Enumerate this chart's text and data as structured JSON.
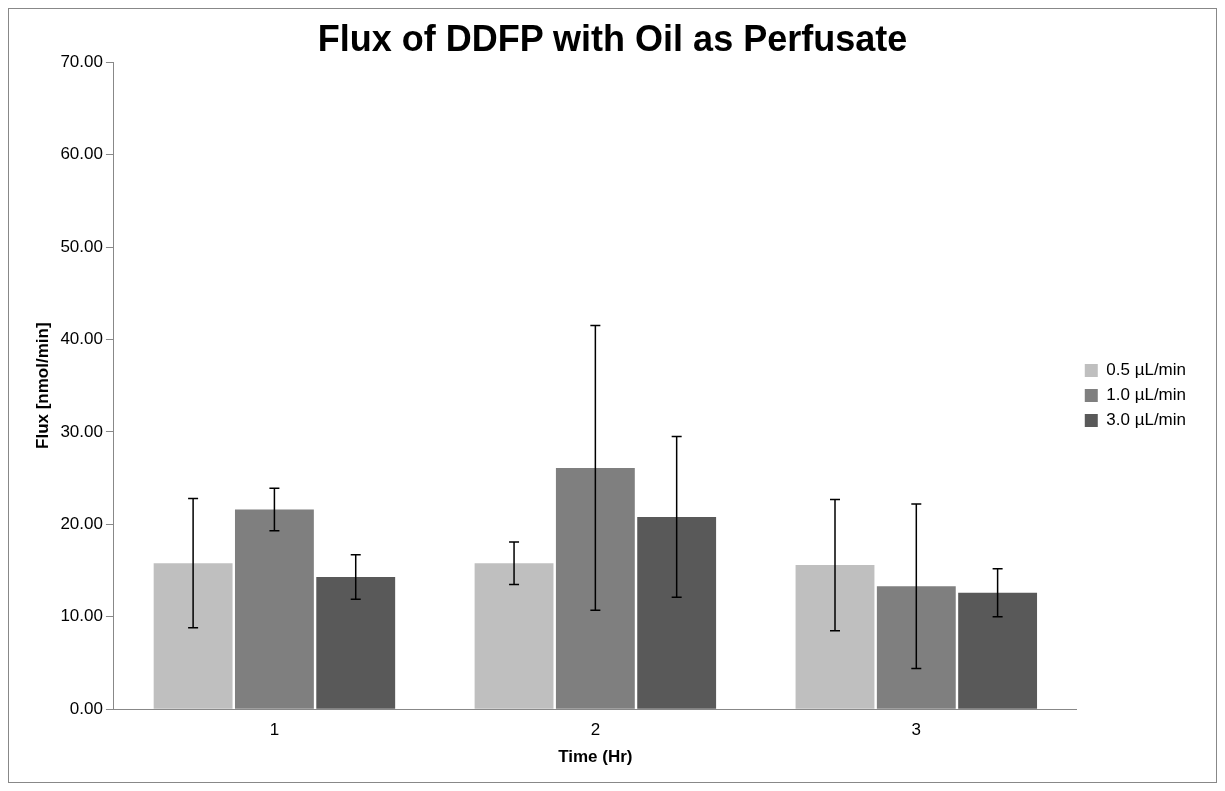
{
  "chart_data": {
    "type": "bar",
    "title": "Flux of DDFP with Oil as Perfusate",
    "xlabel": "Time (Hr)",
    "ylabel": "Flux [nmol/min]",
    "categories": [
      "1",
      "2",
      "3"
    ],
    "series": [
      {
        "name": "0.5 µL/min",
        "color": "#bfbfbf",
        "values": [
          15.8,
          15.8,
          15.6
        ],
        "errors": [
          7.0,
          2.3,
          7.1
        ]
      },
      {
        "name": "1.0 µL/min",
        "color": "#7f7f7f",
        "values": [
          21.6,
          26.1,
          13.3
        ],
        "errors": [
          2.3,
          15.4,
          8.9
        ]
      },
      {
        "name": "3.0 µL/min",
        "color": "#595959",
        "values": [
          14.3,
          20.8,
          12.6
        ],
        "errors": [
          2.4,
          8.7,
          2.6
        ]
      }
    ],
    "ylim": [
      0,
      70
    ],
    "yticks": [
      {
        "value": 0,
        "label": "0.00"
      },
      {
        "value": 10,
        "label": "10.00"
      },
      {
        "value": 20,
        "label": "20.00"
      },
      {
        "value": 30,
        "label": "30.00"
      },
      {
        "value": 40,
        "label": "40.00"
      },
      {
        "value": 50,
        "label": "50.00"
      },
      {
        "value": 60,
        "label": "60.00"
      },
      {
        "value": 70,
        "label": "70.00"
      }
    ],
    "grid": false,
    "legend": "right"
  }
}
